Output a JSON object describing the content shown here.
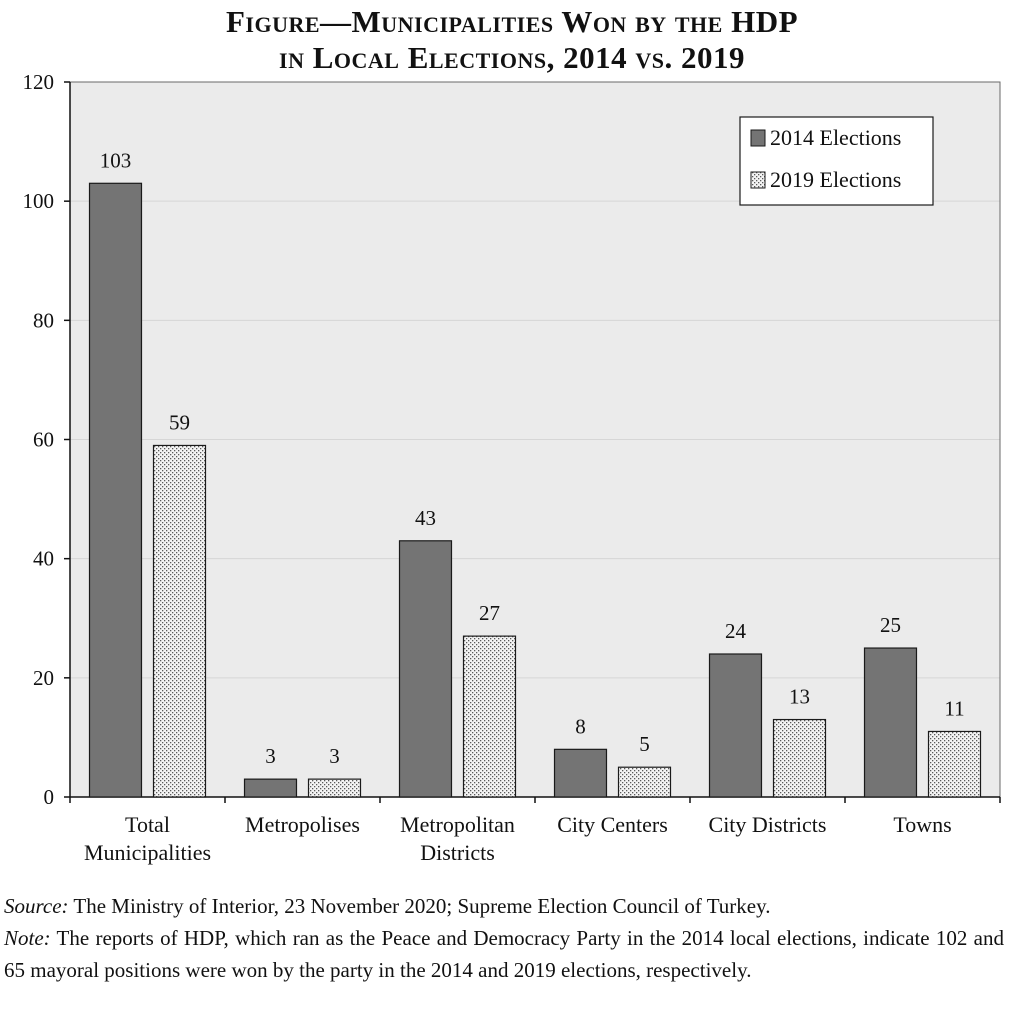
{
  "chart_data": {
    "type": "bar",
    "title": [
      "Figure—Municipalities Won by the HDP",
      "in Local Elections, 2014 vs. 2019"
    ],
    "categories": [
      [
        "Total",
        "Municipalities"
      ],
      [
        "Metropolises"
      ],
      [
        "Metropolitan",
        "Districts"
      ],
      [
        "City Centers"
      ],
      [
        "City Districts"
      ],
      [
        "Towns"
      ]
    ],
    "series": [
      {
        "name": "2014 Elections",
        "values": [
          103,
          3,
          43,
          8,
          24,
          25
        ],
        "fill": "solid",
        "color": "#747474"
      },
      {
        "name": "2019 Elections",
        "values": [
          59,
          3,
          27,
          5,
          13,
          11
        ],
        "fill": "stippled",
        "color": "#f2f2f2"
      }
    ],
    "data_labels": true,
    "xlabel": "",
    "ylabel": "",
    "ylim": [
      0,
      120
    ],
    "yticks": [
      0,
      20,
      40,
      60,
      80,
      100,
      120
    ],
    "grid": true,
    "legend_position": "top-right",
    "plot_background": "#ebebeb",
    "gridline_color": "#d6d6d6",
    "axis_color": "#111111"
  },
  "notes": {
    "source_label": "Source:",
    "source_text": " The Ministry of Interior, 23 November 2020; Supreme Election Council of Turkey.",
    "note_label": "Note:",
    "note_text": " The reports of HDP, which ran as the Peace and Democracy Party in the 2014 local elections, indicate 102 and 65 mayoral positions were won by the party in the 2014 and 2019 elections, respectively."
  }
}
